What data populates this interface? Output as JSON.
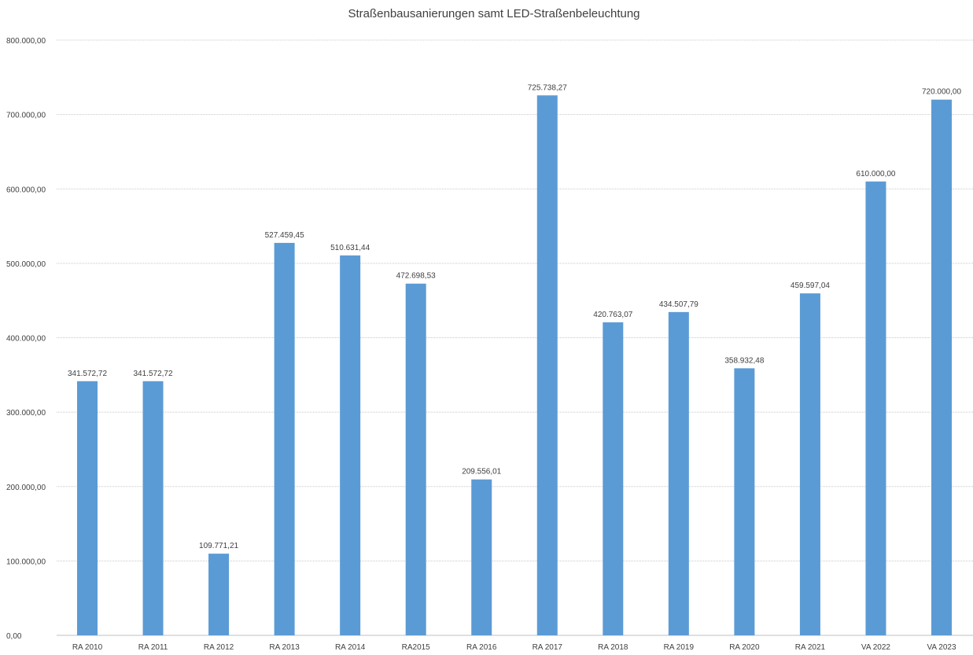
{
  "chart_data": {
    "type": "bar",
    "title": "Straßenbausanierungen samt LED-Straßenbeleuchtung",
    "xlabel": "",
    "ylabel": "",
    "ylim": [
      0,
      800000
    ],
    "y_ticks": [
      0,
      100000,
      200000,
      300000,
      400000,
      500000,
      600000,
      700000,
      800000
    ],
    "y_tick_labels": [
      "0,00",
      "100.000,00",
      "200.000,00",
      "300.000,00",
      "400.000,00",
      "500.000,00",
      "600.000,00",
      "700.000,00",
      "800.000,00"
    ],
    "grid": true,
    "legend": "none",
    "categories": [
      "RA 2010",
      "RA 2011",
      "RA 2012",
      "RA 2013",
      "RA 2014",
      "RA2015",
      "RA 2016",
      "RA 2017",
      "RA 2018",
      "RA 2019",
      "RA 2020",
      "RA 2021",
      "VA 2022",
      "VA 2023"
    ],
    "values": [
      341572.72,
      341572.72,
      109771.21,
      527459.45,
      510631.44,
      472698.53,
      209556.01,
      725738.27,
      420763.07,
      434507.79,
      358932.48,
      459597.04,
      610000.0,
      720000.0
    ],
    "data_labels": [
      "341.572,72",
      "341.572,72",
      "109.771,21",
      "527.459,45",
      "510.631,44",
      "472.698,53",
      "209.556,01",
      "725.738,27",
      "420.763,07",
      "434.507,79",
      "358.932,48",
      "459.597,04",
      "610.000,00",
      "720.000,00"
    ],
    "bar_color": "#5b9bd5"
  }
}
